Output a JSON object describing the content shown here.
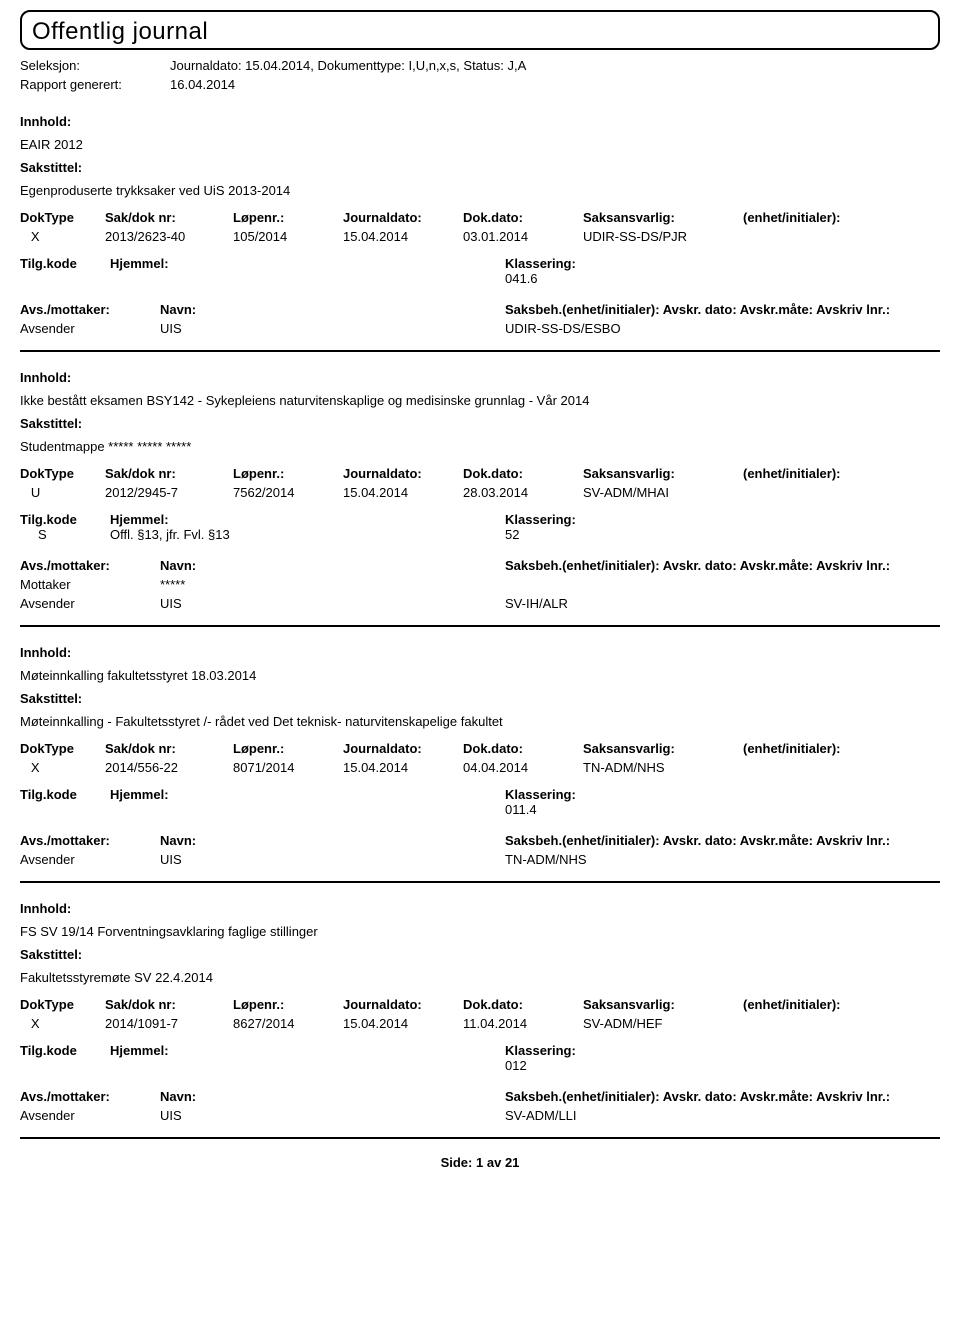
{
  "header": {
    "title": "Offentlig journal",
    "seleksjon_label": "Seleksjon:",
    "seleksjon_value": "Journaldato: 15.04.2014, Dokumenttype: I,U,n,x,s, Status: J,A",
    "rapport_label": "Rapport generert:",
    "rapport_value": "16.04.2014"
  },
  "labels": {
    "innhold": "Innhold:",
    "sakstittel": "Sakstittel:",
    "doktype": "DokType",
    "sakdok": "Sak/dok nr:",
    "lopenr": "Løpenr.:",
    "journaldato": "Journaldato:",
    "dokdato": "Dok.dato:",
    "saksansvarlig": "Saksansvarlig:",
    "enhet": "(enhet/initialer):",
    "tilgkode": "Tilg.kode",
    "hjemmel": "Hjemmel:",
    "klassering": "Klassering:",
    "avsmot": "Avs./mottaker:",
    "navn": "Navn:",
    "saksbeh": "Saksbeh.(enhet/initialer): Avskr. dato: Avskr.måte: Avskriv lnr.:"
  },
  "records": [
    {
      "innhold": "EAIR 2012",
      "sakstittel": "Egenproduserte trykksaker ved UiS 2013-2014",
      "doktype": "X",
      "sakdok": "2013/2623-40",
      "lopenr": "105/2014",
      "jdato": "15.04.2014",
      "ddato": "03.01.2014",
      "saksansv": "UDIR-SS-DS/PJR",
      "tilgkode": "",
      "hjemmel": "",
      "klassering": "041.6",
      "parties": [
        {
          "role": "Avsender",
          "navn": "UIS",
          "saksbeh": "UDIR-SS-DS/ESBO"
        }
      ]
    },
    {
      "innhold": "Ikke bestått eksamen BSY142 - Sykepleiens naturvitenskaplige og medisinske grunnlag - Vår 2014",
      "sakstittel": "Studentmappe ***** ***** *****",
      "doktype": "U",
      "sakdok": "2012/2945-7",
      "lopenr": "7562/2014",
      "jdato": "15.04.2014",
      "ddato": "28.03.2014",
      "saksansv": "SV-ADM/MHAI",
      "tilgkode": "S",
      "hjemmel": "Offl. §13, jfr. Fvl. §13",
      "klassering": "52",
      "parties": [
        {
          "role": "Mottaker",
          "navn": "*****",
          "saksbeh": ""
        },
        {
          "role": "Avsender",
          "navn": "UIS",
          "saksbeh": "SV-IH/ALR"
        }
      ]
    },
    {
      "innhold": "Møteinnkalling fakultetsstyret 18.03.2014",
      "sakstittel": "Møteinnkalling - Fakultetsstyret /- rådet ved Det teknisk- naturvitenskapelige fakultet",
      "doktype": "X",
      "sakdok": "2014/556-22",
      "lopenr": "8071/2014",
      "jdato": "15.04.2014",
      "ddato": "04.04.2014",
      "saksansv": "TN-ADM/NHS",
      "tilgkode": "",
      "hjemmel": "",
      "klassering": "011.4",
      "parties": [
        {
          "role": "Avsender",
          "navn": "UIS",
          "saksbeh": "TN-ADM/NHS"
        }
      ]
    },
    {
      "innhold": "FS SV 19/14 Forventningsavklaring faglige stillinger",
      "sakstittel": "Fakultetsstyremøte SV 22.4.2014",
      "doktype": "X",
      "sakdok": "2014/1091-7",
      "lopenr": "8627/2014",
      "jdato": "15.04.2014",
      "ddato": "11.04.2014",
      "saksansv": "SV-ADM/HEF",
      "tilgkode": "",
      "hjemmel": "",
      "klassering": "012",
      "parties": [
        {
          "role": "Avsender",
          "navn": "UIS",
          "saksbeh": "SV-ADM/LLI"
        }
      ]
    }
  ],
  "footer": {
    "side": "Side:",
    "page": "1",
    "av": "av",
    "total": "21"
  }
}
